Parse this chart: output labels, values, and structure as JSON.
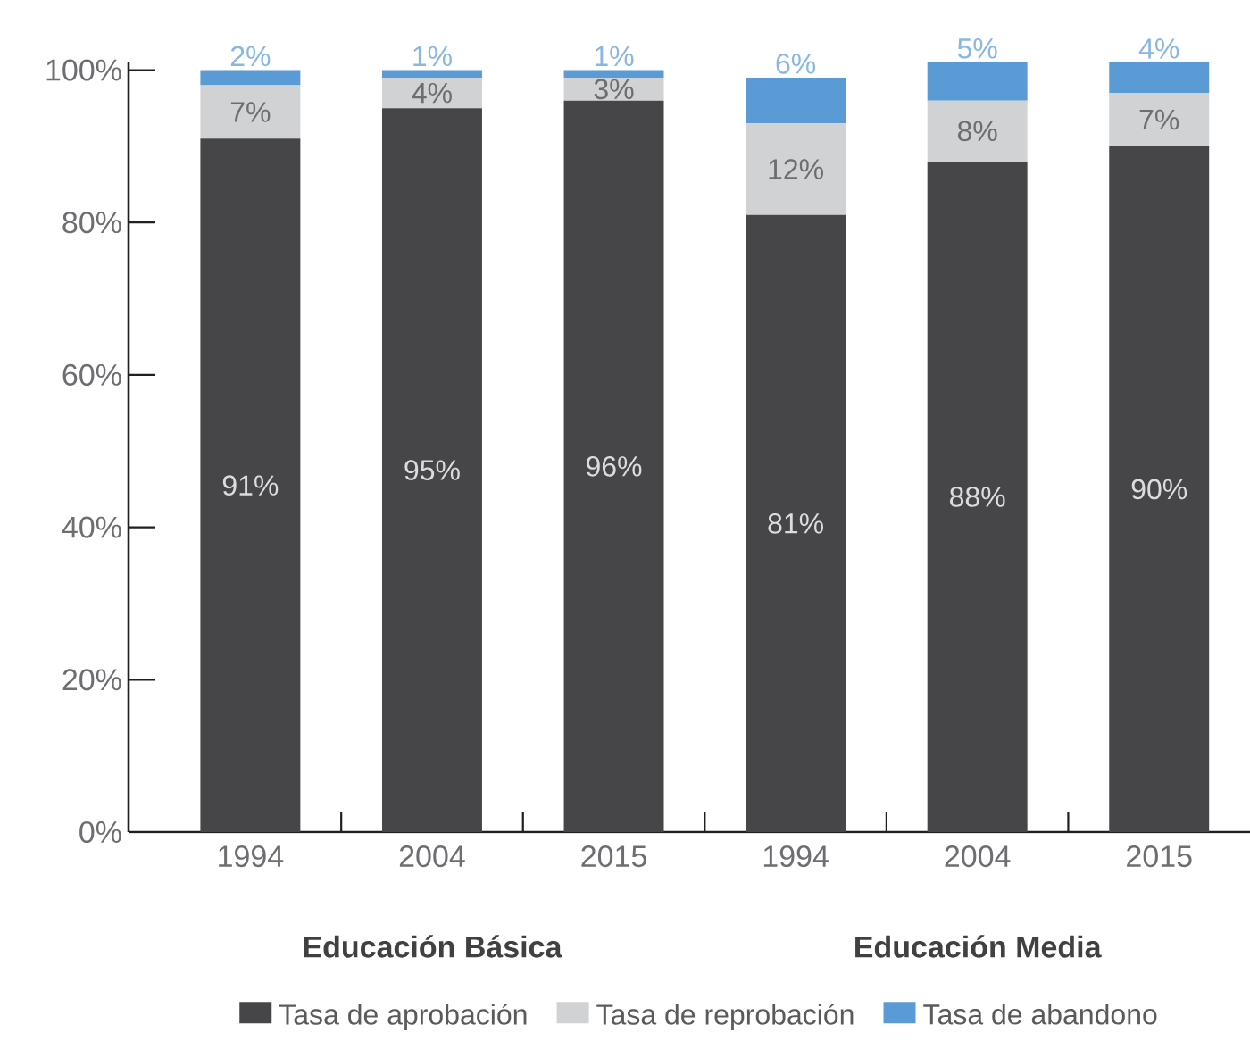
{
  "chart_data": {
    "type": "bar",
    "stacked": true,
    "categories": [
      "1994",
      "2004",
      "2015",
      "1994",
      "2004",
      "2015"
    ],
    "series": [
      {
        "name": "Tasa de aprobación",
        "color": "#464648",
        "values": [
          91,
          95,
          96,
          81,
          88,
          90
        ],
        "value_labels": [
          "91%",
          "95%",
          "96%",
          "81%",
          "88%",
          "90%"
        ]
      },
      {
        "name": "Tasa de reprobación",
        "color": "#d1d2d4",
        "values": [
          7,
          4,
          3,
          12,
          8,
          7
        ],
        "value_labels": [
          "7%",
          "4%",
          "3%",
          "12%",
          "8%",
          "7%"
        ]
      },
      {
        "name": "Tasa de abandono",
        "color": "#5b9bd5",
        "values": [
          2,
          1,
          1,
          6,
          5,
          4
        ],
        "value_labels": [
          "2%",
          "1%",
          "1%",
          "6%",
          "5%",
          "4%"
        ]
      }
    ],
    "ylim": [
      0,
      101
    ],
    "yticks": [
      {
        "value": 0,
        "label": "0%"
      },
      {
        "value": 20,
        "label": "20%"
      },
      {
        "value": 40,
        "label": "40%"
      },
      {
        "value": 60,
        "label": "60%"
      },
      {
        "value": 80,
        "label": "80%"
      },
      {
        "value": 100,
        "label": "100%"
      }
    ],
    "legend": "bottom",
    "annotations": [
      "Educación Básica",
      "Educación Media"
    ]
  }
}
